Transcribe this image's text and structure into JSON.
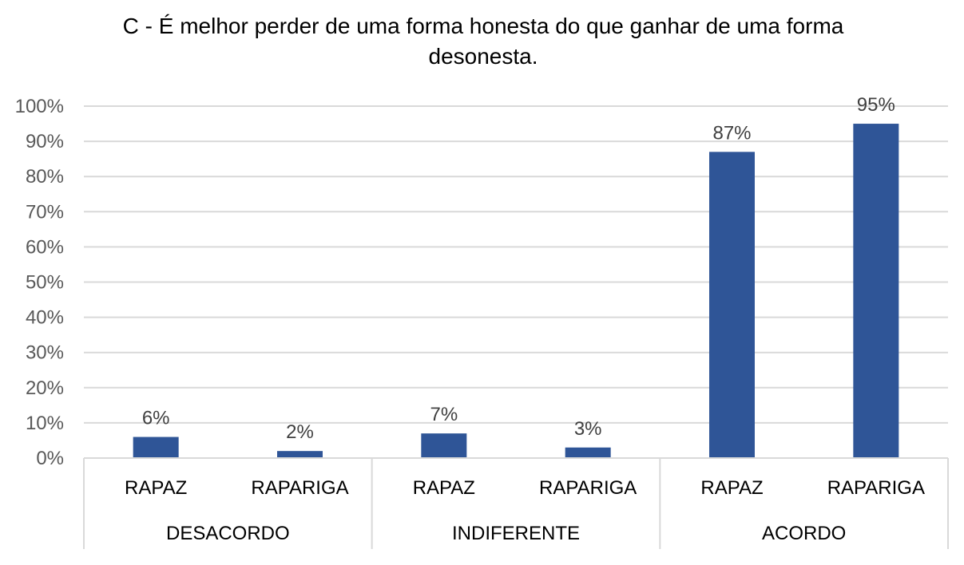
{
  "chart_data": {
    "type": "bar",
    "title": "C - É melhor perder de uma forma honesta do que ganhar de uma forma desonesta.",
    "groups": [
      "DESACORDO",
      "INDIFERENTE",
      "ACORDO"
    ],
    "categories": [
      "RAPAZ",
      "RAPARIGA",
      "RAPAZ",
      "RAPARIGA",
      "RAPAZ",
      "RAPARIGA"
    ],
    "values": [
      6,
      2,
      7,
      3,
      87,
      95
    ],
    "data_labels": [
      "6%",
      "2%",
      "7%",
      "3%",
      "87%",
      "95%"
    ],
    "yticks": [
      "0%",
      "10%",
      "20%",
      "30%",
      "40%",
      "50%",
      "60%",
      "70%",
      "80%",
      "90%",
      "100%"
    ],
    "ylim": [
      0,
      100
    ],
    "xlabel": "",
    "ylabel": "",
    "grid": true,
    "legend": "none",
    "bar_color": "#2f5597"
  }
}
